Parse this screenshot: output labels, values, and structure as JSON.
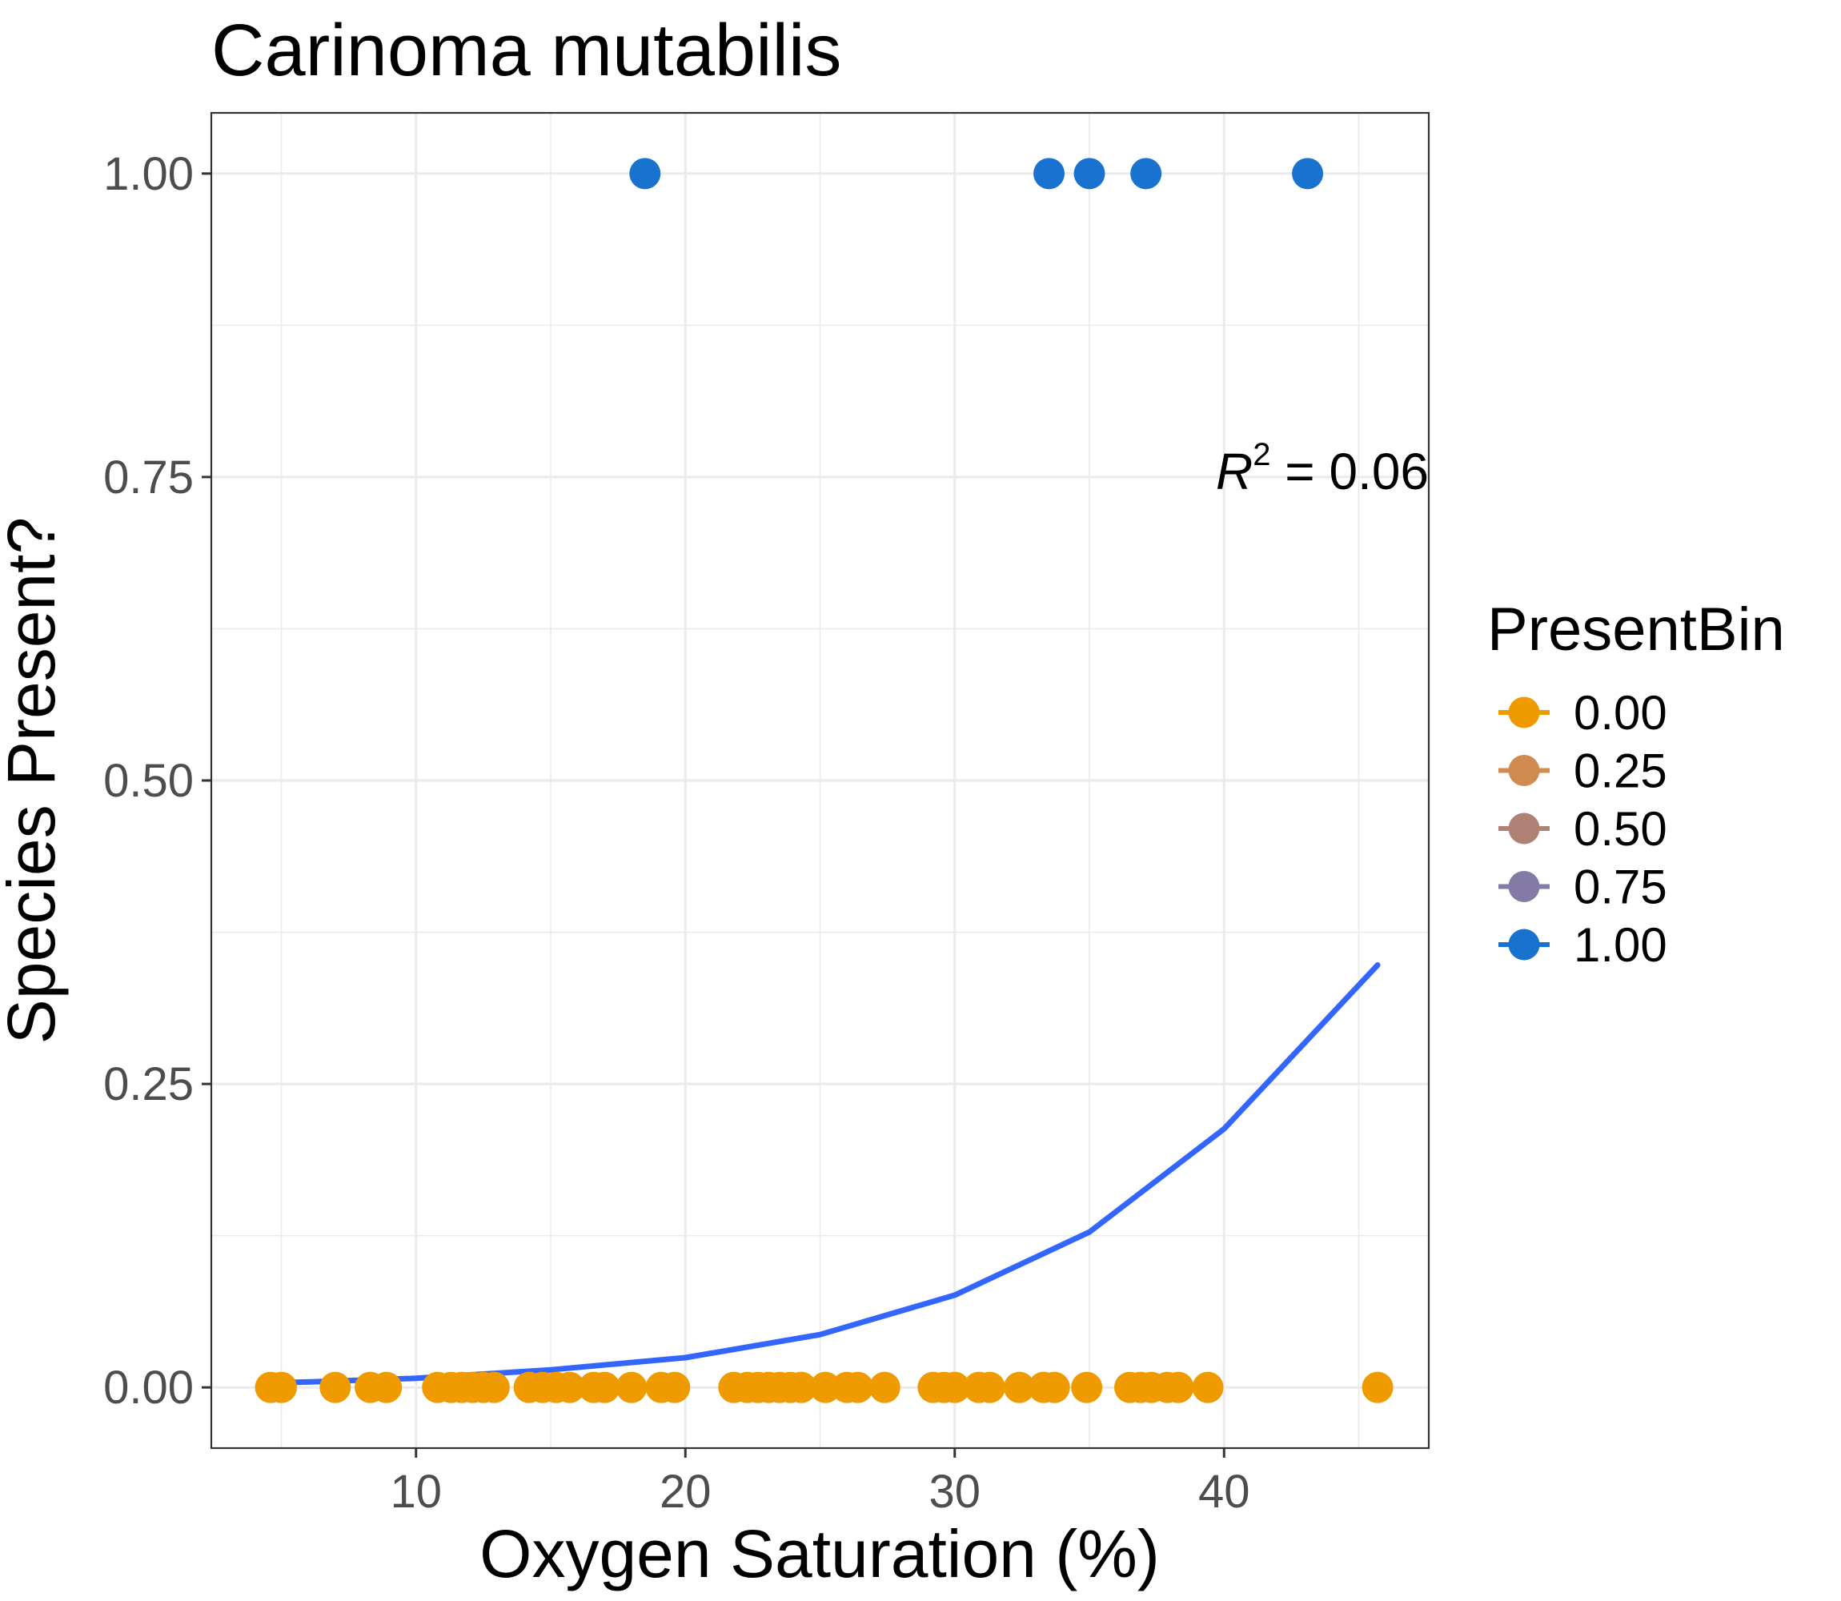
{
  "chart_data": {
    "type": "scatter",
    "title": "Carinoma mutabilis",
    "xlabel": "Oxygen Saturation (%)",
    "ylabel": "Species Present?",
    "xlim": [
      2.4,
      47.6
    ],
    "ylim": [
      -0.05,
      1.05
    ],
    "x_ticks": [
      10,
      20,
      30,
      40
    ],
    "x_tick_labels": [
      "10",
      "20",
      "30",
      "40"
    ],
    "x_minor_ticks": [
      5,
      15,
      25,
      35,
      45
    ],
    "y_ticks": [
      0,
      0.25,
      0.5,
      0.75,
      1
    ],
    "y_tick_labels": [
      "0.00",
      "0.25",
      "0.50",
      "0.75",
      "1.00"
    ],
    "y_minor_ticks": [
      0.125,
      0.375,
      0.625,
      0.875
    ],
    "grid": true,
    "legend": {
      "title": "PresentBin",
      "position": "right",
      "entries": [
        {
          "label": "0.00",
          "color": "#ef9b00"
        },
        {
          "label": "0.25",
          "color": "#d18b50"
        },
        {
          "label": "0.50",
          "color": "#b08175"
        },
        {
          "label": "0.75",
          "color": "#837ba5"
        },
        {
          "label": "1.00",
          "color": "#1a72cf"
        }
      ]
    },
    "annotation": {
      "base": "R",
      "exponent": "2",
      "rest": " = 0.06",
      "x": 47.6,
      "y": 0.74
    },
    "series": [
      {
        "value": 0,
        "color": "#ef9b00",
        "x": [
          4.6,
          5.0,
          7.0,
          8.3,
          8.9,
          10.8,
          11.3,
          11.7,
          12.1,
          12.5,
          12.9,
          14.2,
          14.7,
          15.2,
          15.7,
          16.6,
          17.0,
          18.0,
          19.1,
          19.6,
          21.8,
          22.3,
          22.7,
          23.1,
          23.5,
          23.9,
          24.3,
          25.2,
          26.0,
          26.4,
          27.4,
          29.2,
          29.6,
          30.0,
          30.9,
          31.3,
          32.4,
          33.3,
          33.7,
          34.9,
          36.5,
          36.9,
          37.3,
          37.9,
          38.3,
          39.4,
          45.7
        ],
        "y": [
          0,
          0,
          0,
          0,
          0,
          0,
          0,
          0,
          0,
          0,
          0,
          0,
          0,
          0,
          0,
          0,
          0,
          0,
          0,
          0,
          0,
          0,
          0,
          0,
          0,
          0,
          0,
          0,
          0,
          0,
          0,
          0,
          0,
          0,
          0,
          0,
          0,
          0,
          0,
          0,
          0,
          0,
          0,
          0,
          0,
          0,
          0
        ]
      },
      {
        "value": 1,
        "color": "#1a72cf",
        "x": [
          18.5,
          33.5,
          35.0,
          37.1,
          43.1
        ],
        "y": [
          1,
          1,
          1,
          1,
          1
        ]
      }
    ],
    "fit": {
      "type": "logistic",
      "color": "#3366ff",
      "x": [
        4.6,
        10,
        15,
        20,
        25,
        30,
        35,
        40,
        45.7
      ],
      "y": [
        0.0035,
        0.0075,
        0.0145,
        0.0245,
        0.0435,
        0.076,
        0.128,
        0.213,
        0.348
      ]
    }
  }
}
